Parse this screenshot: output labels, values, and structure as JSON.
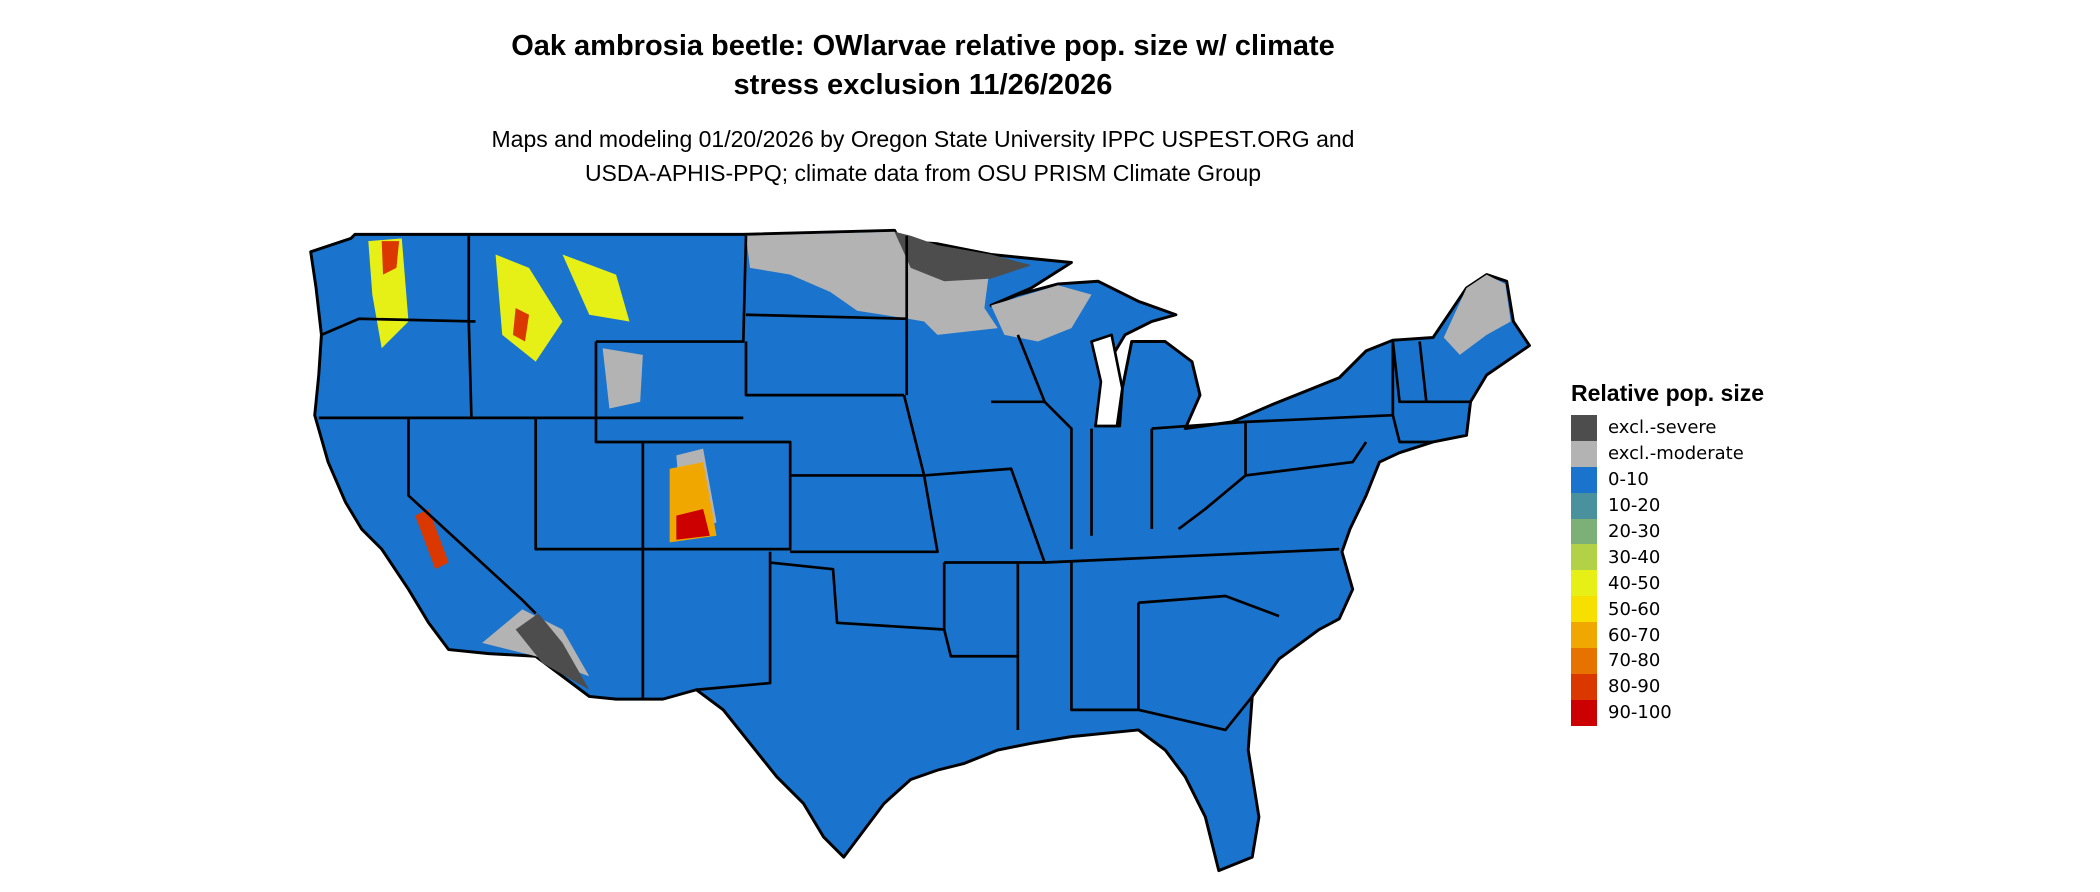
{
  "title_lines": [
    "Oak ambrosia beetle: OWlarvae relative pop. size w/ climate",
    "stress exclusion 11/26/2026"
  ],
  "subtitle_lines": [
    "Maps and modeling 01/20/2026 by Oregon State University IPPC USPEST.ORG and",
    "USDA-APHIS-PPQ; climate data from OSU PRISM Climate Group"
  ],
  "legend": {
    "title": "Relative pop. size",
    "items": [
      {
        "label": "excl.-severe",
        "color": "#4d4d4d"
      },
      {
        "label": "excl.-moderate",
        "color": "#b3b3b3"
      },
      {
        "label": "0-10",
        "color": "#1a73cc"
      },
      {
        "label": "10-20",
        "color": "#4a919e"
      },
      {
        "label": "20-30",
        "color": "#7db076"
      },
      {
        "label": "30-40",
        "color": "#b3d147"
      },
      {
        "label": "40-50",
        "color": "#e6f016"
      },
      {
        "label": "50-60",
        "color": "#f7e000"
      },
      {
        "label": "60-70",
        "color": "#f0a800"
      },
      {
        "label": "70-80",
        "color": "#e67300"
      },
      {
        "label": "80-90",
        "color": "#db3800"
      },
      {
        "label": "90-100",
        "color": "#cc0000"
      }
    ]
  },
  "map": {
    "region": "Contiguous United States",
    "state_borders": true,
    "dominant_class": "0-10",
    "excluded_areas": "excl.-moderate across North Dakota, northern Minnesota, northern Wisconsin, Upper Michigan, northern Maine, Wyoming basins; excl.-severe in far northern Minnesota and the southwestern Arizona/California deserts",
    "high_value_areas": "scattered 40-100 in the northern Rockies (Idaho, Montana, Wyoming), the Colorado Rockies and the Sierra Nevada"
  }
}
